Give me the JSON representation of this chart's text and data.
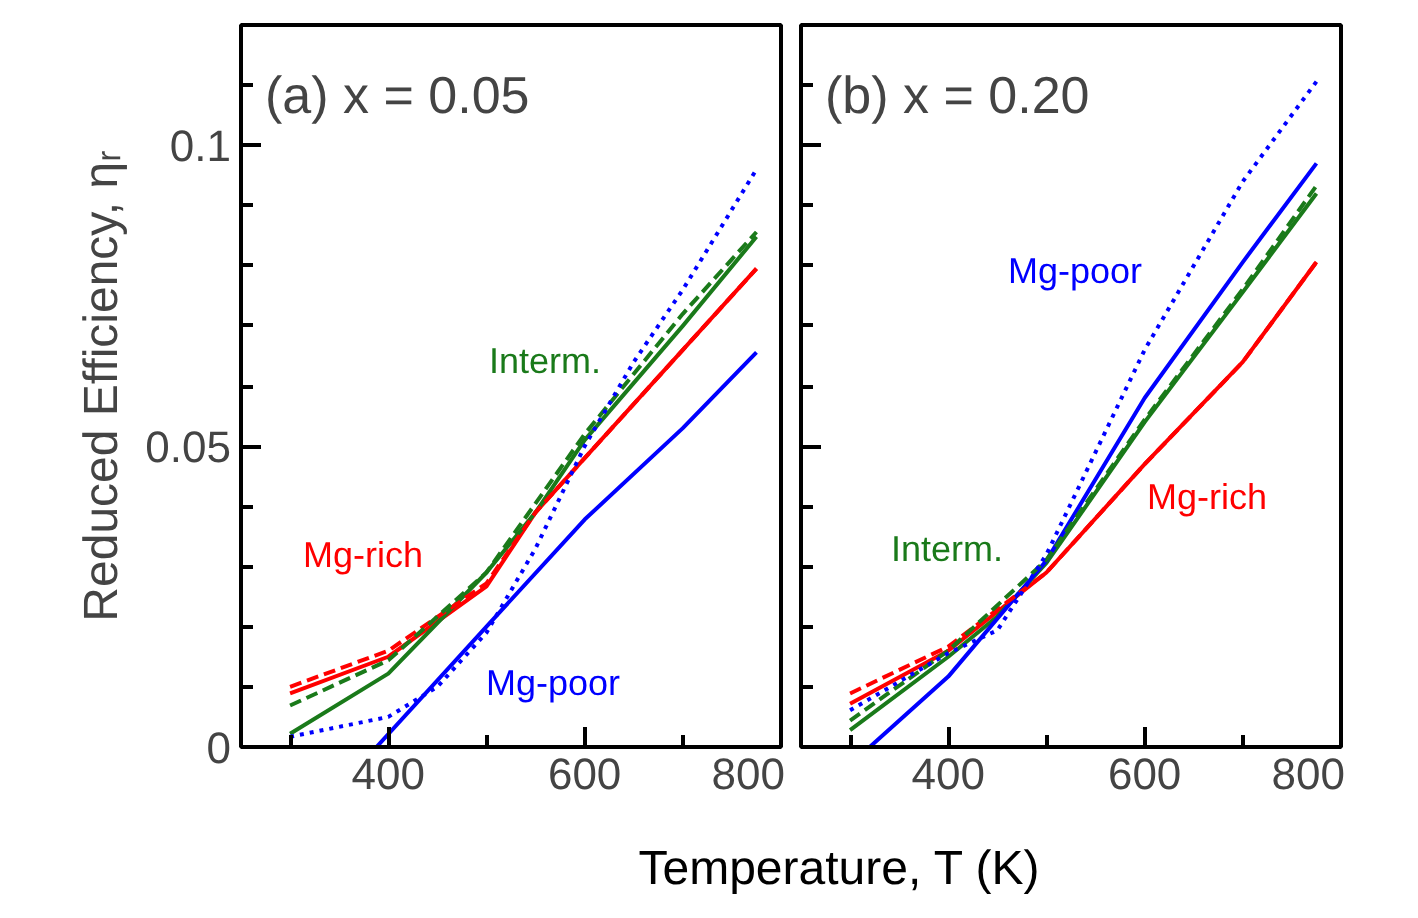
{
  "chart_data": [
    {
      "type": "line",
      "title": "(a) x = 0.05",
      "ylabel": "Reduced Efficiency, ηᵣ",
      "xlabel": "Temperature, T (K)",
      "xlim": [
        250,
        800
      ],
      "xticks": [
        {
          "value": 300,
          "label": null
        },
        400,
        {
          "value": 500,
          "label": null
        },
        600,
        {
          "value": 700,
          "label": null
        },
        800
      ],
      "ylim": [
        0,
        0.12
      ],
      "yticks": [
        0,
        {
          "value": 0.01,
          "label": null
        },
        {
          "value": 0.02,
          "label": null
        },
        {
          "value": 0.03,
          "label": null
        },
        {
          "value": 0.04,
          "label": null
        },
        0.05,
        {
          "value": 0.06,
          "label": null
        },
        {
          "value": 0.07,
          "label": null
        },
        {
          "value": 0.08,
          "label": null
        },
        {
          "value": 0.09,
          "label": null
        },
        0.1,
        {
          "value": 0.11,
          "label": null
        }
      ],
      "grid": false,
      "series": [
        {
          "name": "Mg-rich",
          "color": "#ff0000",
          "line_style": "solid",
          "x": [
            300,
            400,
            500,
            550,
            600,
            700,
            775
          ],
          "values": [
            0.0089,
            0.015,
            0.0267,
            0.039,
            0.048,
            0.066,
            0.0795
          ]
        },
        {
          "name": "Interm.",
          "color": "#1a7a1a",
          "line_style": "solid",
          "x": [
            300,
            400,
            500,
            550,
            600,
            700,
            775
          ],
          "values": [
            0.0022,
            0.0122,
            0.029,
            0.039,
            0.051,
            0.07,
            0.0848
          ]
        },
        {
          "name": "Mg-poor",
          "color": "#0000ff",
          "line_style": "solid",
          "x": [
            388,
            500,
            600,
            700,
            775
          ],
          "values": [
            0,
            0.02,
            0.0378,
            0.053,
            0.0656
          ]
        },
        {
          "color": "#ff0000",
          "line_style": "dashed",
          "x": [
            300,
            400,
            500,
            550,
            600,
            700,
            775
          ],
          "values": [
            0.01,
            0.016,
            0.0272,
            0.039,
            0.048,
            0.066,
            0.0795
          ]
        },
        {
          "color": "#1a7a1a",
          "line_style": "dashed",
          "x": [
            300,
            400,
            500,
            600,
            700,
            775
          ],
          "values": [
            0.0069,
            0.0144,
            0.029,
            0.052,
            0.072,
            0.0856
          ]
        },
        {
          "color": "#0000ff",
          "line_style": "dotted",
          "x": [
            300,
            400,
            450,
            500,
            550,
            600,
            650,
            700,
            775
          ],
          "values": [
            0.0017,
            0.005,
            0.01,
            0.019,
            0.033,
            0.05,
            0.064,
            0.076,
            0.096
          ]
        }
      ]
    },
    {
      "type": "line",
      "title": "(b) x = 0.20",
      "tick_labels": "x",
      "xlim": [
        250,
        800
      ],
      "xticks": [
        {
          "value": 300,
          "label": null
        },
        400,
        {
          "value": 500,
          "label": null
        },
        600,
        {
          "value": 700,
          "label": null
        },
        800
      ],
      "ylim": [
        0,
        0.12
      ],
      "yticks": [
        0,
        {
          "value": 0.01,
          "label": null
        },
        {
          "value": 0.02,
          "label": null
        },
        {
          "value": 0.03,
          "label": null
        },
        {
          "value": 0.04,
          "label": null
        },
        0.05,
        {
          "value": 0.06,
          "label": null
        },
        {
          "value": 0.07,
          "label": null
        },
        {
          "value": 0.08,
          "label": null
        },
        {
          "value": 0.09,
          "label": null
        },
        0.1,
        {
          "value": 0.11,
          "label": null
        }
      ],
      "grid": false,
      "series": [
        {
          "name": "Mg-rich",
          "color": "#ff0000",
          "line_style": "solid",
          "x": [
            300,
            400,
            500,
            600,
            700,
            775
          ],
          "values": [
            0.0072,
            0.016,
            0.029,
            0.047,
            0.064,
            0.0806
          ]
        },
        {
          "name": "Interm.",
          "color": "#1a7a1a",
          "line_style": "solid",
          "x": [
            300,
            400,
            450,
            500,
            600,
            700,
            775
          ],
          "values": [
            0.0028,
            0.015,
            0.0217,
            0.0306,
            0.054,
            0.0756,
            0.092
          ]
        },
        {
          "name": "Mg-poor",
          "color": "#0000ff",
          "line_style": "solid",
          "x": [
            320,
            400,
            500,
            600,
            700,
            775
          ],
          "values": [
            0,
            0.0117,
            0.031,
            0.058,
            0.0806,
            0.097
          ]
        },
        {
          "color": "#ff0000",
          "line_style": "dashed",
          "x": [
            300,
            400,
            500,
            600,
            700,
            775
          ],
          "values": [
            0.0089,
            0.0167,
            0.029,
            0.047,
            0.064,
            0.0806
          ]
        },
        {
          "color": "#1a7a1a",
          "line_style": "dashed",
          "x": [
            300,
            400,
            500,
            600,
            700,
            775
          ],
          "values": [
            0.0044,
            0.016,
            0.0311,
            0.0544,
            0.0761,
            0.0933
          ]
        },
        {
          "color": "#0000ff",
          "line_style": "dotted",
          "x": [
            300,
            400,
            450,
            500,
            600,
            700,
            775
          ],
          "values": [
            0.0061,
            0.0156,
            0.0194,
            0.032,
            0.066,
            0.094,
            0.1106
          ]
        }
      ]
    }
  ]
}
